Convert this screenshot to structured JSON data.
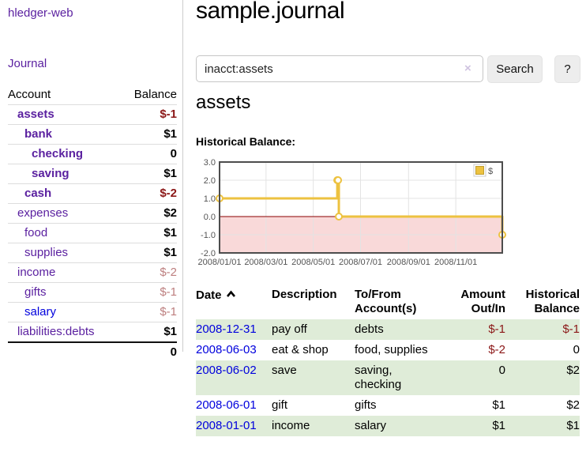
{
  "app": {
    "brand": "hledger-web"
  },
  "sidebar": {
    "journal_link": "Journal",
    "headers": {
      "account": "Account",
      "balance": "Balance"
    },
    "accounts": [
      {
        "name": "assets",
        "balance": "$-1",
        "depth": 1,
        "inacct": true,
        "negative": true,
        "link_color": "purple"
      },
      {
        "name": "bank",
        "balance": "$1",
        "depth": 2,
        "inacct": true,
        "negative": false,
        "link_color": "purple"
      },
      {
        "name": "checking",
        "balance": "0",
        "depth": 3,
        "inacct": true,
        "negative": false,
        "link_color": "purple"
      },
      {
        "name": "saving",
        "balance": "$1",
        "depth": 3,
        "inacct": true,
        "negative": false,
        "link_color": "purple"
      },
      {
        "name": "cash",
        "balance": "$-2",
        "depth": 2,
        "inacct": true,
        "negative": true,
        "link_color": "purple"
      },
      {
        "name": "expenses",
        "balance": "$2",
        "depth": 1,
        "inacct": false,
        "negative": false,
        "link_color": "purple"
      },
      {
        "name": "food",
        "balance": "$1",
        "depth": 2,
        "inacct": false,
        "negative": false,
        "link_color": "purple"
      },
      {
        "name": "supplies",
        "balance": "$1",
        "depth": 2,
        "inacct": false,
        "negative": false,
        "link_color": "purple"
      },
      {
        "name": "income",
        "balance": "$-2",
        "depth": 1,
        "inacct": false,
        "negative": true,
        "link_color": "purple"
      },
      {
        "name": "gifts",
        "balance": "$-1",
        "depth": 2,
        "inacct": false,
        "negative": true,
        "link_color": "purple"
      },
      {
        "name": "salary",
        "balance": "$-1",
        "depth": 2,
        "inacct": false,
        "negative": true,
        "link_color": "blue"
      },
      {
        "name": "liabilities:debts",
        "balance": "$1",
        "depth": 1,
        "inacct": false,
        "negative": false,
        "link_color": "purple"
      }
    ],
    "total": "0"
  },
  "main": {
    "title": "sample.journal",
    "search": {
      "value": "inacct:assets",
      "clear_icon": "×",
      "button_label": "Search",
      "help_label": "?"
    },
    "account_heading": "assets",
    "chart_label": "Historical Balance:"
  },
  "chart_data": {
    "type": "line",
    "steps": true,
    "series": [
      {
        "name": "$",
        "color": "#edc240",
        "points": [
          [
            "2008-01-01",
            1
          ],
          [
            "2008-06-01",
            2
          ],
          [
            "2008-06-02",
            2
          ],
          [
            "2008-06-03",
            0
          ],
          [
            "2008-12-31",
            -1
          ]
        ]
      }
    ],
    "xlim": [
      "2008-01-01",
      "2008-12-31"
    ],
    "ylim": [
      -2,
      3
    ],
    "yticks": [
      3,
      2,
      1,
      0,
      -1,
      -2
    ],
    "xticks": [
      "2008/01/01",
      "2008/03/01",
      "2008/05/01",
      "2008/07/01",
      "2008/09/01",
      "2008/11/01"
    ],
    "grid": true,
    "legend": {
      "label": "$",
      "position": "top-right"
    },
    "zero_line_color": "#8b0000",
    "negative_region_color": "#f9d9d9"
  },
  "register": {
    "headers": [
      "Date",
      "Description",
      "To/From Account(s)",
      "Amount Out/In",
      "Historical Balance"
    ],
    "sort": {
      "column": "Date",
      "direction": "ascending",
      "icon": "chevron-up-icon"
    },
    "rows": [
      {
        "date": "2008-12-31",
        "description": "pay off",
        "accounts": "debts",
        "amount": "$-1",
        "balance": "$-1",
        "amount_negative": true,
        "balance_negative": true
      },
      {
        "date": "2008-06-03",
        "description": "eat & shop",
        "accounts": "food, supplies",
        "amount": "$-2",
        "balance": "0",
        "amount_negative": true,
        "balance_negative": false
      },
      {
        "date": "2008-06-02",
        "description": "save",
        "accounts": "saving, checking",
        "amount": "0",
        "balance": "$2",
        "amount_negative": false,
        "balance_negative": false
      },
      {
        "date": "2008-06-01",
        "description": "gift",
        "accounts": "gifts",
        "amount": "$1",
        "balance": "$2",
        "amount_negative": false,
        "balance_negative": false
      },
      {
        "date": "2008-01-01",
        "description": "income",
        "accounts": "salary",
        "amount": "$1",
        "balance": "$1",
        "amount_negative": false,
        "balance_negative": false
      }
    ]
  }
}
